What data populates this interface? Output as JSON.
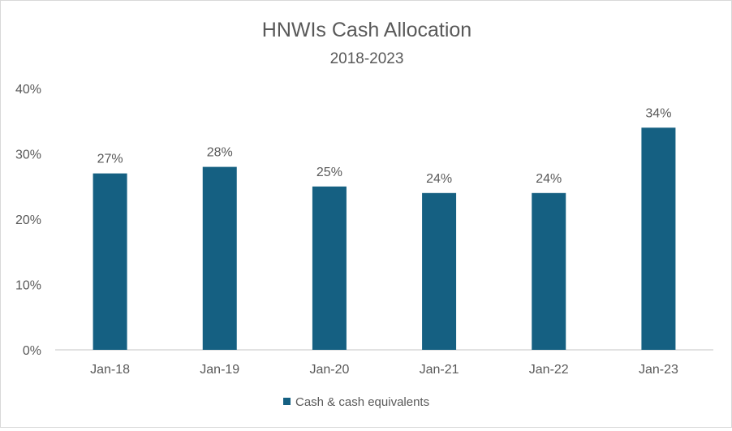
{
  "chart_data": {
    "type": "bar",
    "title": "HNWIs Cash Allocation",
    "subtitle": "2018-2023",
    "xlabel": "",
    "ylabel": "",
    "categories": [
      "Jan-18",
      "Jan-19",
      "Jan-20",
      "Jan-21",
      "Jan-22",
      "Jan-23"
    ],
    "series": [
      {
        "name": "Cash & cash equivalents",
        "values": [
          27,
          28,
          25,
          24,
          24,
          34
        ],
        "color": "#156082"
      }
    ],
    "data_labels": [
      "27%",
      "28%",
      "25%",
      "24%",
      "24%",
      "34%"
    ],
    "ylim": [
      0,
      40
    ],
    "yticks": [
      0,
      10,
      20,
      30,
      40
    ],
    "ytick_labels": [
      "0%",
      "10%",
      "20%",
      "30%",
      "40%"
    ],
    "grid": false,
    "legend_position": "bottom"
  }
}
